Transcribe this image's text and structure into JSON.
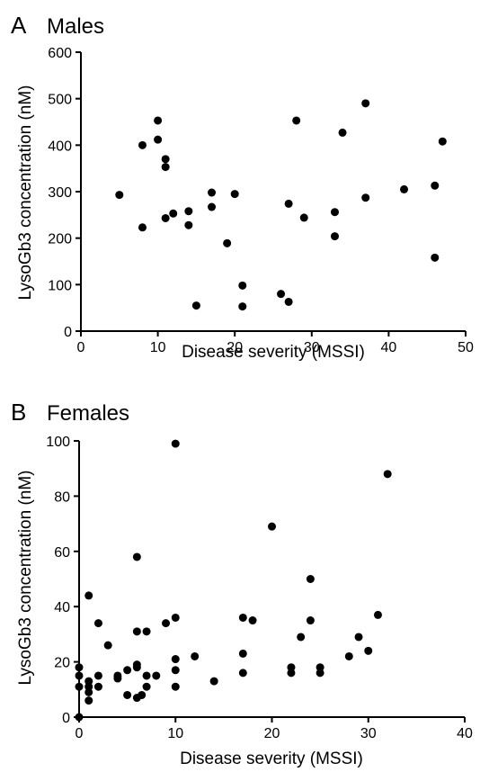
{
  "chart_data": [
    {
      "type": "scatter",
      "panel_letter": "A",
      "title": "Males",
      "xlabel": "Disease severity (MSSI)",
      "ylabel": "LysoGb3 concentration (nM)",
      "xlim": [
        0,
        50
      ],
      "ylim": [
        0,
        600
      ],
      "xticks": [
        0,
        10,
        20,
        30,
        40,
        50
      ],
      "yticks": [
        0,
        100,
        200,
        300,
        400,
        500,
        600
      ],
      "grid": false,
      "points": [
        {
          "x": 5,
          "y": 293
        },
        {
          "x": 8,
          "y": 400
        },
        {
          "x": 8,
          "y": 223
        },
        {
          "x": 10,
          "y": 453
        },
        {
          "x": 10,
          "y": 412
        },
        {
          "x": 11,
          "y": 370
        },
        {
          "x": 11,
          "y": 353
        },
        {
          "x": 11,
          "y": 243
        },
        {
          "x": 12,
          "y": 253
        },
        {
          "x": 14,
          "y": 258
        },
        {
          "x": 14,
          "y": 228
        },
        {
          "x": 15,
          "y": 55
        },
        {
          "x": 17,
          "y": 298
        },
        {
          "x": 17,
          "y": 267
        },
        {
          "x": 19,
          "y": 189
        },
        {
          "x": 20,
          "y": 295
        },
        {
          "x": 21,
          "y": 98
        },
        {
          "x": 21,
          "y": 53
        },
        {
          "x": 26,
          "y": 80
        },
        {
          "x": 27,
          "y": 274
        },
        {
          "x": 27,
          "y": 63
        },
        {
          "x": 28,
          "y": 453
        },
        {
          "x": 29,
          "y": 244
        },
        {
          "x": 33,
          "y": 256
        },
        {
          "x": 33,
          "y": 204
        },
        {
          "x": 34,
          "y": 427
        },
        {
          "x": 37,
          "y": 490
        },
        {
          "x": 37,
          "y": 287
        },
        {
          "x": 42,
          "y": 305
        },
        {
          "x": 46,
          "y": 313
        },
        {
          "x": 46,
          "y": 158
        },
        {
          "x": 47,
          "y": 408
        }
      ]
    },
    {
      "type": "scatter",
      "panel_letter": "B",
      "title": "Females",
      "xlabel": "Disease severity (MSSI)",
      "ylabel": "LysoGb3 concentration (nM)",
      "xlim": [
        0,
        40
      ],
      "ylim": [
        0,
        100
      ],
      "xticks": [
        0,
        10,
        20,
        30,
        40
      ],
      "yticks": [
        0,
        20,
        40,
        60,
        80,
        100
      ],
      "grid": false,
      "points": [
        {
          "x": 0,
          "y": 18
        },
        {
          "x": 0,
          "y": 15
        },
        {
          "x": 0,
          "y": 11
        },
        {
          "x": 0,
          "y": 0
        },
        {
          "x": 1,
          "y": 44
        },
        {
          "x": 1,
          "y": 13
        },
        {
          "x": 1,
          "y": 11
        },
        {
          "x": 1,
          "y": 9
        },
        {
          "x": 1,
          "y": 6
        },
        {
          "x": 2,
          "y": 34
        },
        {
          "x": 2,
          "y": 15
        },
        {
          "x": 2,
          "y": 11
        },
        {
          "x": 3,
          "y": 26
        },
        {
          "x": 4,
          "y": 15
        },
        {
          "x": 4,
          "y": 14
        },
        {
          "x": 5,
          "y": 17
        },
        {
          "x": 5,
          "y": 8
        },
        {
          "x": 6,
          "y": 58
        },
        {
          "x": 6,
          "y": 31
        },
        {
          "x": 6,
          "y": 19
        },
        {
          "x": 6,
          "y": 18
        },
        {
          "x": 6,
          "y": 7
        },
        {
          "x": 6.5,
          "y": 8
        },
        {
          "x": 7,
          "y": 31
        },
        {
          "x": 7,
          "y": 15
        },
        {
          "x": 7,
          "y": 11
        },
        {
          "x": 8,
          "y": 15
        },
        {
          "x": 9,
          "y": 34
        },
        {
          "x": 10,
          "y": 99
        },
        {
          "x": 10,
          "y": 36
        },
        {
          "x": 10,
          "y": 21
        },
        {
          "x": 10,
          "y": 17
        },
        {
          "x": 10,
          "y": 11
        },
        {
          "x": 12,
          "y": 22
        },
        {
          "x": 14,
          "y": 13
        },
        {
          "x": 17,
          "y": 36
        },
        {
          "x": 17,
          "y": 23
        },
        {
          "x": 17,
          "y": 16
        },
        {
          "x": 18,
          "y": 35
        },
        {
          "x": 20,
          "y": 69
        },
        {
          "x": 22,
          "y": 18
        },
        {
          "x": 22,
          "y": 16
        },
        {
          "x": 23,
          "y": 29
        },
        {
          "x": 24,
          "y": 50
        },
        {
          "x": 24,
          "y": 35
        },
        {
          "x": 25,
          "y": 18
        },
        {
          "x": 25,
          "y": 16
        },
        {
          "x": 28,
          "y": 22
        },
        {
          "x": 29,
          "y": 29
        },
        {
          "x": 30,
          "y": 24
        },
        {
          "x": 31,
          "y": 37
        },
        {
          "x": 32,
          "y": 88
        }
      ]
    }
  ]
}
